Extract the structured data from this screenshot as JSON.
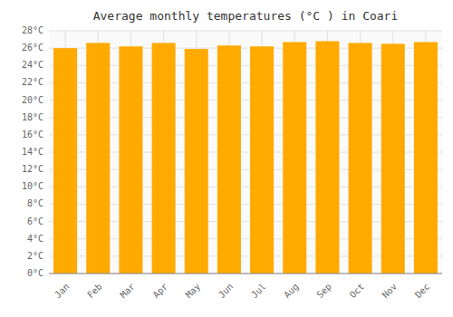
{
  "chart_data": {
    "type": "bar",
    "title": "Average monthly temperatures (°C ) in Coari",
    "categories": [
      "Jan",
      "Feb",
      "Mar",
      "Apr",
      "May",
      "Jun",
      "Jul",
      "Aug",
      "Sep",
      "Oct",
      "Nov",
      "Dec"
    ],
    "values": [
      26.0,
      26.6,
      26.2,
      26.6,
      25.9,
      26.3,
      26.2,
      26.7,
      26.8,
      26.6,
      26.5,
      26.7
    ],
    "color": "#FFAA00",
    "ylim": [
      0,
      28
    ],
    "yticks": [
      {
        "value": 0,
        "label": "0°C"
      },
      {
        "value": 2,
        "label": "2°C"
      },
      {
        "value": 4,
        "label": "4°C"
      },
      {
        "value": 6,
        "label": "6°C"
      },
      {
        "value": 8,
        "label": "8°C"
      },
      {
        "value": 10,
        "label": "10°C"
      },
      {
        "value": 12,
        "label": "12°C"
      },
      {
        "value": 14,
        "label": "14°C"
      },
      {
        "value": 16,
        "label": "16°C"
      },
      {
        "value": 18,
        "label": "18°C"
      },
      {
        "value": 20,
        "label": "20°C"
      },
      {
        "value": 22,
        "label": "22°C"
      },
      {
        "value": 24,
        "label": "24°C"
      },
      {
        "value": 26,
        "label": "26°C"
      },
      {
        "value": 28,
        "label": "28°C"
      }
    ],
    "grid": true
  }
}
